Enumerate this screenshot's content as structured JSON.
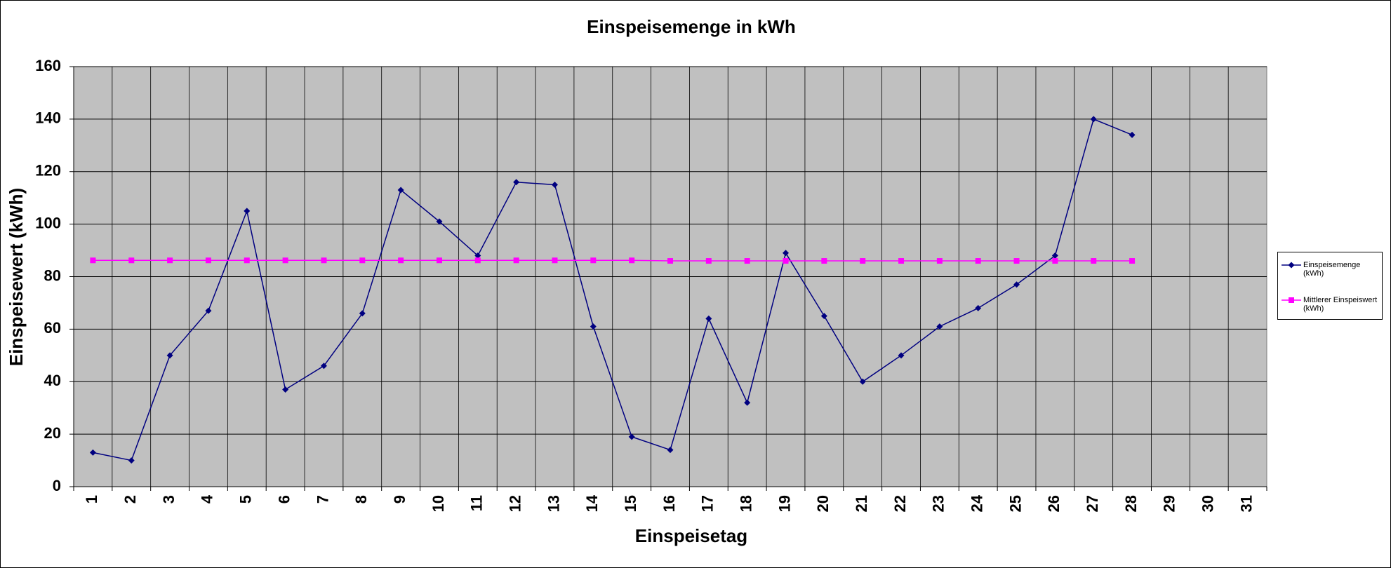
{
  "chart_data": {
    "type": "line",
    "title": "Einspeisemenge in kWh",
    "x_label": "Einspeisetag",
    "y_label": "Einspeisewert  (kWh)",
    "categories": [
      "1",
      "2",
      "3",
      "4",
      "5",
      "6",
      "7",
      "8",
      "9",
      "10",
      "11",
      "12",
      "13",
      "14",
      "15",
      "16",
      "17",
      "18",
      "19",
      "20",
      "21",
      "22",
      "23",
      "24",
      "25",
      "26",
      "27",
      "28",
      "29",
      "30",
      "31"
    ],
    "series": [
      {
        "name": "Einspeisemenge (kWh)",
        "color": "#000080",
        "marker": "diamond",
        "values": [
          13,
          10,
          50,
          67,
          105,
          37,
          46,
          66,
          113,
          101,
          88,
          116,
          115,
          61,
          19,
          14,
          64,
          32,
          89,
          65,
          40,
          50,
          61,
          68,
          77,
          88,
          140,
          134,
          null,
          null,
          null
        ]
      },
      {
        "name": "Mittlerer Einspeiswert (kWh)",
        "color": "#ff00ff",
        "marker": "square",
        "values": [
          86.2,
          86.2,
          86.2,
          86.2,
          86.2,
          86.2,
          86.2,
          86.2,
          86.2,
          86.2,
          86.2,
          86.2,
          86.2,
          86.2,
          86.2,
          86,
          86,
          86,
          86,
          86,
          86,
          86,
          86,
          86,
          86,
          86,
          86,
          86,
          null,
          null,
          null
        ]
      }
    ],
    "ylim": [
      0,
      160
    ],
    "yticks": [
      0,
      20,
      40,
      60,
      80,
      100,
      120,
      140,
      160
    ],
    "grid": true,
    "legend": "right"
  }
}
